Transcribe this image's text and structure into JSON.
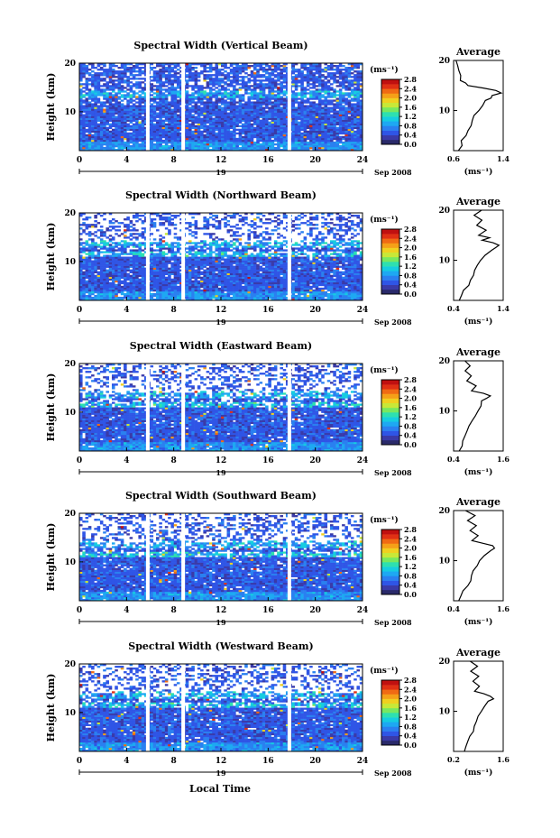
{
  "figure": {
    "xlabel": "Local Time",
    "date_label": "Sep 2008",
    "day_label": "19",
    "colorbar_unit": "(ms⁻¹)",
    "average_title": "Average",
    "average_xlabel": "(ms⁻¹)",
    "ylabel": "Height (km)"
  },
  "colormap": [
    "#2a2a6a",
    "#3a3aa8",
    "#2f55e6",
    "#2a80f0",
    "#1ea8f2",
    "#16cde0",
    "#2ee0b0",
    "#78e860",
    "#c8e838",
    "#f0d020",
    "#f5a018",
    "#f06a14",
    "#e03014",
    "#c01010"
  ],
  "chart_data": [
    {
      "type": "heatmap",
      "title": "Spectral Width (Vertical Beam)",
      "xlim": [
        0,
        24
      ],
      "ylim": [
        2,
        20
      ],
      "x_ticks": [
        0,
        4,
        8,
        12,
        16,
        20,
        24
      ],
      "y_ticks": [
        20,
        10
      ],
      "colorbar": {
        "ticks": [
          "0.0",
          "0.4",
          "0.8",
          "1.2",
          "1.6",
          "2.0",
          "2.4",
          "2.8"
        ],
        "range": [
          0,
          2.8
        ]
      },
      "data_gaps_hours": [
        5.8,
        8.8,
        17.8
      ],
      "z_description_values": {
        "low_heights_mean": 0.6,
        "tropopause_height_km": 13.5,
        "tropopause_peak": 1.4
      },
      "average": {
        "xlim": [
          0.6,
          1.4
        ],
        "x_ticks": [
          "0.6",
          "1.4"
        ],
        "y_ticks": [
          20,
          10
        ],
        "height": [
          2,
          3,
          4,
          5,
          6,
          7,
          8,
          9,
          10,
          11,
          12,
          12.5,
          13,
          13.5,
          14,
          14.5,
          15,
          15.5,
          16,
          17,
          18,
          19,
          20
        ],
        "value": [
          0.7,
          0.72,
          0.75,
          0.78,
          0.82,
          0.86,
          0.9,
          0.95,
          1.0,
          1.05,
          1.1,
          1.18,
          1.25,
          1.35,
          1.28,
          1.05,
          0.85,
          0.78,
          0.72,
          0.7,
          0.68,
          0.66,
          0.65
        ]
      }
    },
    {
      "type": "heatmap",
      "title": "Spectral Width (Northward Beam)",
      "xlim": [
        0,
        24
      ],
      "ylim": [
        2,
        20
      ],
      "x_ticks": [
        0,
        4,
        8,
        12,
        16,
        20,
        24
      ],
      "y_ticks": [
        20,
        10
      ],
      "colorbar": {
        "ticks": [
          "0.0",
          "0.4",
          "0.8",
          "1.2",
          "1.6",
          "2.0",
          "2.4",
          "2.8"
        ],
        "range": [
          0,
          2.8
        ]
      },
      "data_gaps_hours": [
        5.8,
        8.8,
        17.8
      ],
      "average": {
        "xlim": [
          0.4,
          1.4
        ],
        "x_ticks": [
          "0.4",
          "1.4"
        ],
        "y_ticks": [
          20,
          10
        ],
        "height": [
          2,
          3,
          4,
          5,
          6,
          7,
          8,
          9,
          10,
          11,
          12,
          12.5,
          13,
          13.5,
          14,
          14.5,
          15,
          16,
          17,
          18,
          19,
          20
        ],
        "value": [
          0.5,
          0.55,
          0.62,
          0.7,
          0.75,
          0.8,
          0.85,
          0.9,
          0.95,
          1.05,
          1.15,
          1.25,
          1.3,
          1.2,
          0.95,
          1.1,
          0.9,
          1.05,
          0.85,
          1.0,
          0.8,
          0.95
        ]
      }
    },
    {
      "type": "heatmap",
      "title": "Spectral Width (Eastward Beam)",
      "xlim": [
        0,
        24
      ],
      "ylim": [
        2,
        20
      ],
      "x_ticks": [
        0,
        4,
        8,
        12,
        16,
        20,
        24
      ],
      "y_ticks": [
        20,
        10
      ],
      "colorbar": {
        "ticks": [
          "0.0",
          "0.4",
          "0.8",
          "1.2",
          "1.6",
          "2.0",
          "2.4",
          "2.8"
        ],
        "range": [
          0,
          2.8
        ]
      },
      "data_gaps_hours": [
        5.8,
        8.8,
        17.8
      ],
      "average": {
        "xlim": [
          0.4,
          1.6
        ],
        "x_ticks": [
          "0.4",
          "1.6"
        ],
        "y_ticks": [
          20,
          10
        ],
        "height": [
          2,
          3,
          4,
          5,
          6,
          7,
          8,
          9,
          10,
          11,
          12,
          12.5,
          13,
          13.5,
          14,
          15,
          16,
          17,
          18,
          19,
          20
        ],
        "value": [
          0.55,
          0.6,
          0.65,
          0.7,
          0.75,
          0.8,
          0.85,
          0.95,
          1.0,
          1.05,
          1.1,
          1.2,
          1.3,
          1.15,
          0.85,
          0.95,
          0.75,
          0.85,
          0.7,
          0.8,
          0.65
        ]
      }
    },
    {
      "type": "heatmap",
      "title": "Spectral Width (Southward Beam)",
      "xlim": [
        0,
        24
      ],
      "ylim": [
        2,
        20
      ],
      "x_ticks": [
        0,
        4,
        8,
        12,
        16,
        20,
        24
      ],
      "y_ticks": [
        20,
        10
      ],
      "colorbar": {
        "ticks": [
          "0.0",
          "0.4",
          "0.8",
          "1.2",
          "1.6",
          "2.0",
          "2.4",
          "2.8"
        ],
        "range": [
          0,
          2.8
        ]
      },
      "data_gaps_hours": [
        5.8,
        8.8,
        17.8
      ],
      "average": {
        "xlim": [
          0.4,
          1.6
        ],
        "x_ticks": [
          "0.4",
          "1.6"
        ],
        "y_ticks": [
          20,
          10
        ],
        "height": [
          2,
          3,
          4,
          5,
          6,
          7,
          8,
          9,
          10,
          11,
          12,
          12.5,
          13,
          13.5,
          14,
          15,
          16,
          17,
          18,
          19,
          20
        ],
        "value": [
          0.55,
          0.6,
          0.65,
          0.72,
          0.8,
          0.85,
          0.9,
          0.95,
          1.05,
          1.15,
          1.3,
          1.4,
          1.35,
          1.1,
          0.85,
          1.0,
          0.8,
          0.95,
          0.75,
          0.9,
          0.7
        ]
      }
    },
    {
      "type": "heatmap",
      "title": "Spectral Width (Westward Beam)",
      "xlim": [
        0,
        24
      ],
      "ylim": [
        2,
        20
      ],
      "x_ticks": [
        0,
        4,
        8,
        12,
        16,
        20,
        24
      ],
      "y_ticks": [
        20,
        10
      ],
      "colorbar": {
        "ticks": [
          "0.0",
          "0.4",
          "0.8",
          "1.2",
          "1.6",
          "2.0",
          "2.4",
          "2.8"
        ],
        "range": [
          0,
          2.8
        ]
      },
      "data_gaps_hours": [
        5.8,
        8.8,
        17.8
      ],
      "average": {
        "xlim": [
          0.2,
          1.6
        ],
        "x_ticks": [
          "0.2",
          "1.6"
        ],
        "y_ticks": [
          20,
          10
        ],
        "height": [
          2,
          3,
          4,
          5,
          6,
          7,
          8,
          9,
          10,
          11,
          12,
          12.5,
          13,
          13.5,
          14,
          15,
          16,
          17,
          18,
          19,
          20
        ],
        "value": [
          0.5,
          0.55,
          0.6,
          0.68,
          0.75,
          0.8,
          0.85,
          0.9,
          1.0,
          1.1,
          1.2,
          1.3,
          1.25,
          1.05,
          0.8,
          0.95,
          0.75,
          0.9,
          0.7,
          0.85,
          0.65
        ]
      }
    }
  ]
}
